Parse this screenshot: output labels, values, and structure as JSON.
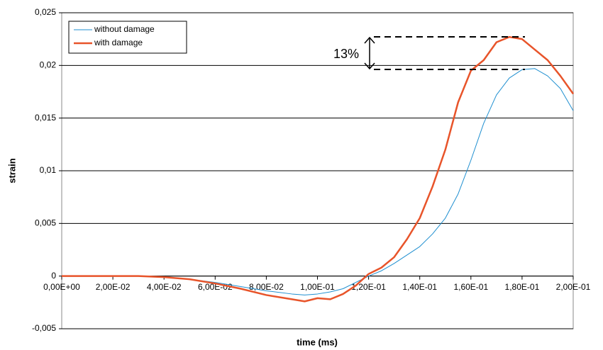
{
  "chart_data": {
    "type": "line",
    "x_label": "time (ms)",
    "y_label": "strain",
    "annotation": "13%",
    "x": [
      0,
      0.01,
      0.02,
      0.03,
      0.04,
      0.05,
      0.06,
      0.07,
      0.08,
      0.09,
      0.095,
      0.1,
      0.105,
      0.11,
      0.115,
      0.12,
      0.125,
      0.13,
      0.135,
      0.14,
      0.145,
      0.15,
      0.155,
      0.16,
      0.165,
      0.17,
      0.175,
      0.18,
      0.185,
      0.19,
      0.195,
      0.2
    ],
    "series": [
      {
        "name": "without damage",
        "color": "#1f8fd0",
        "width": 1,
        "values": [
          0,
          0,
          0,
          0,
          -0.0001,
          -0.0003,
          -0.0006,
          -0.001,
          -0.0014,
          -0.0017,
          -0.0018,
          -0.0017,
          -0.0015,
          -0.0012,
          -0.0006,
          0,
          0.0005,
          0.0012,
          0.002,
          0.0028,
          0.004,
          0.0055,
          0.0078,
          0.011,
          0.0145,
          0.0172,
          0.0188,
          0.0196,
          0.0197,
          0.019,
          0.0178,
          0.0157
        ]
      },
      {
        "name": "with damage",
        "color": "#e8542a",
        "width": 2.5,
        "values": [
          0,
          0,
          0,
          0,
          -0.0001,
          -0.0003,
          -0.0007,
          -0.0012,
          -0.0018,
          -0.0022,
          -0.0024,
          -0.0021,
          -0.0022,
          -0.0017,
          -0.0009,
          0.0002,
          0.0008,
          0.0018,
          0.0035,
          0.0055,
          0.0085,
          0.012,
          0.0165,
          0.0195,
          0.0205,
          0.0222,
          0.0227,
          0.0225,
          0.0215,
          0.0205,
          0.019,
          0.0173
        ]
      }
    ],
    "xlim": [
      0,
      0.2
    ],
    "ylim": [
      -0.005,
      0.025
    ],
    "xticks": [
      {
        "value": 0,
        "label": "0,00E+00"
      },
      {
        "value": 0.02,
        "label": "2,00E-02"
      },
      {
        "value": 0.04,
        "label": "4,00E-02"
      },
      {
        "value": 0.06,
        "label": "6,00E-02"
      },
      {
        "value": 0.08,
        "label": "8,00E-02"
      },
      {
        "value": 0.1,
        "label": "1,00E-01"
      },
      {
        "value": 0.12,
        "label": "1,20E-01"
      },
      {
        "value": 0.14,
        "label": "1,40E-01"
      },
      {
        "value": 0.16,
        "label": "1,60E-01"
      },
      {
        "value": 0.18,
        "label": "1,80E-01"
      },
      {
        "value": 0.2,
        "label": "2,00E-01"
      }
    ],
    "yticks": [
      {
        "value": -0.005,
        "label": "-0,005"
      },
      0,
      {
        "value": 0.005,
        "label": "0,005"
      },
      {
        "value": 0.01,
        "label": "0,01"
      },
      {
        "value": 0.015,
        "label": "0,015"
      },
      {
        "value": 0.02,
        "label": "0,02"
      },
      {
        "value": 0.025,
        "label": "0,025"
      }
    ],
    "grid": true,
    "legend": "upper left"
  }
}
